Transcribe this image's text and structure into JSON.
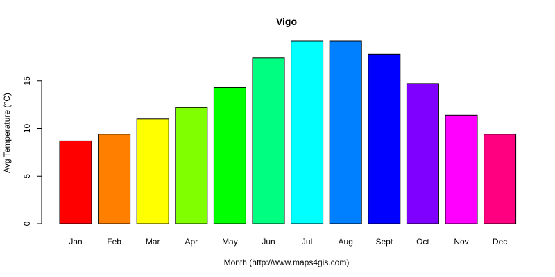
{
  "chart_data": {
    "type": "bar",
    "title": "Vigo",
    "xlabel": "Month (http://www.maps4gis.com)",
    "ylabel": "Avg Temperature (°C)",
    "categories": [
      "Jan",
      "Feb",
      "Mar",
      "Apr",
      "May",
      "Jun",
      "Jul",
      "Aug",
      "Sept",
      "Oct",
      "Nov",
      "Dec"
    ],
    "values": [
      8.7,
      9.4,
      11.0,
      12.2,
      14.3,
      17.4,
      19.2,
      19.2,
      17.8,
      14.7,
      11.4,
      9.4
    ],
    "colors": [
      "#FF0000",
      "#FF8000",
      "#FFFF00",
      "#80FF00",
      "#00FF00",
      "#00FF80",
      "#00FFFF",
      "#0080FF",
      "#0000FF",
      "#8000FF",
      "#FF00FF",
      "#FF0080"
    ],
    "yticks": [
      0,
      5,
      10,
      15
    ],
    "ylim": [
      0,
      19.2
    ],
    "grid": false,
    "legend": "none"
  }
}
